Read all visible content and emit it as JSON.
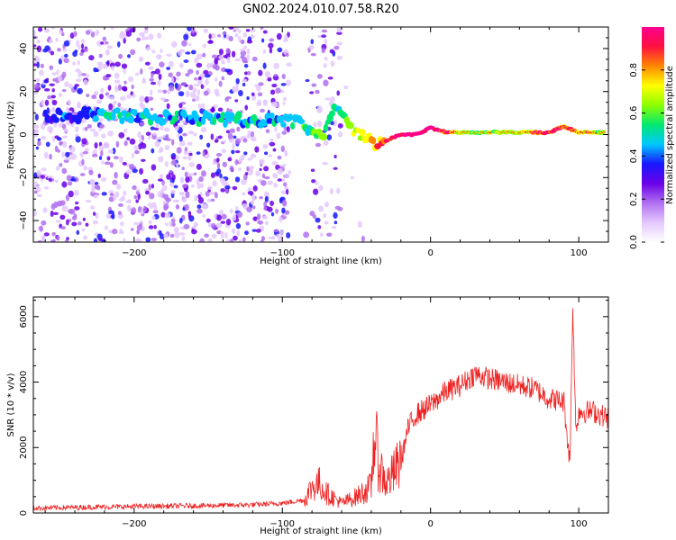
{
  "title": "GN02.2024.010.07.58.R20",
  "colors": {
    "snr_line": "#ee2222",
    "axis": "#000000",
    "spectro_palette": [
      "#ffffff",
      "#e4c8ff",
      "#b070f0",
      "#6a00e8",
      "#1818ff",
      "#00c8ff",
      "#00e870",
      "#8cff00",
      "#ffff00",
      "#ff8800",
      "#ff1040",
      "#ff0090"
    ]
  },
  "chart_data": [
    {
      "type": "heatmap",
      "title": "GN02.2024.010.07.58.R20",
      "xlabel": "Height of straight line (km)",
      "ylabel": "Frequency (Hz)",
      "xlim": [
        -268,
        120
      ],
      "ylim": [
        -50,
        50
      ],
      "xticks": [
        -200,
        -100,
        0,
        100
      ],
      "yticks": [
        -40,
        -20,
        0,
        20,
        40
      ],
      "colorbar": {
        "label": "Normalized spectral amplitude",
        "range": [
          0.0,
          1.0
        ],
        "ticks": [
          "0.0",
          "0.2",
          "0.4",
          "0.6",
          "0.8"
        ]
      },
      "ridge": [
        {
          "x": -260,
          "f": 9,
          "a": 0.35
        },
        {
          "x": -220,
          "f": 9,
          "a": 0.45
        },
        {
          "x": -180,
          "f": 8,
          "a": 0.45
        },
        {
          "x": -140,
          "f": 7,
          "a": 0.45
        },
        {
          "x": -110,
          "f": 7,
          "a": 0.45
        },
        {
          "x": -90,
          "f": 6,
          "a": 0.5
        },
        {
          "x": -80,
          "f": 2,
          "a": 0.55
        },
        {
          "x": -72,
          "f": -2,
          "a": 0.6
        },
        {
          "x": -65,
          "f": 13,
          "a": 0.55
        },
        {
          "x": -55,
          "f": 4,
          "a": 0.6
        },
        {
          "x": -40,
          "f": -4,
          "a": 0.7
        },
        {
          "x": -30,
          "f": -3,
          "a": 0.85
        },
        {
          "x": -20,
          "f": 0,
          "a": 0.9
        },
        {
          "x": -10,
          "f": 0,
          "a": 0.95
        },
        {
          "x": 0,
          "f": 3,
          "a": 0.95
        },
        {
          "x": 10,
          "f": 1,
          "a": 0.85
        },
        {
          "x": 30,
          "f": 1,
          "a": 0.6
        },
        {
          "x": 60,
          "f": 1,
          "a": 0.65
        },
        {
          "x": 80,
          "f": 1,
          "a": 0.9
        },
        {
          "x": 90,
          "f": 4,
          "a": 0.8
        },
        {
          "x": 100,
          "f": 1,
          "a": 0.75
        },
        {
          "x": 118,
          "f": 1,
          "a": 0.6
        }
      ]
    },
    {
      "type": "line",
      "xlabel": "Height of straight line (km)",
      "ylabel": "SNR (10 * v/v)",
      "xlim": [
        -268,
        120
      ],
      "ylim": [
        0,
        6600
      ],
      "xticks": [
        -200,
        -100,
        0,
        100
      ],
      "yticks": [
        0,
        2000,
        4000,
        6000
      ],
      "series": [
        {
          "x": [
            -268,
            -240,
            -200,
            -160,
            -120,
            -100,
            -85,
            -80,
            -75,
            -70,
            -60,
            -50,
            -40,
            -38,
            -35,
            -30,
            -25,
            -20,
            -15,
            -10,
            0,
            10,
            20,
            30,
            40,
            50,
            60,
            70,
            80,
            90,
            94,
            96,
            98,
            100,
            110,
            120
          ],
          "y": [
            150,
            170,
            200,
            220,
            250,
            300,
            400,
            800,
            900,
            600,
            300,
            500,
            800,
            2500,
            1500,
            900,
            1200,
            1600,
            2600,
            3000,
            3300,
            3700,
            3900,
            4250,
            4100,
            4000,
            3900,
            3800,
            3500,
            3400,
            1500,
            6400,
            2500,
            3100,
            3100,
            2900
          ]
        }
      ]
    }
  ]
}
